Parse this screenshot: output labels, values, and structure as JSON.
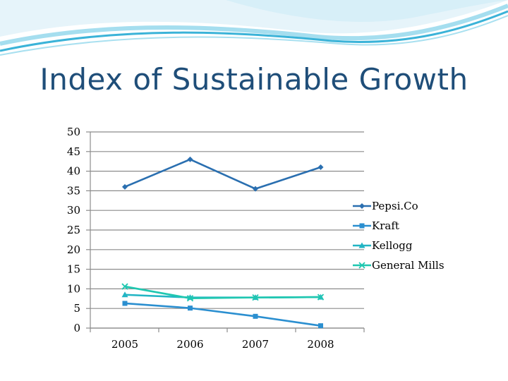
{
  "slide": {
    "title": "Index of Sustainable Growth"
  },
  "chart_data": {
    "type": "line",
    "title": "",
    "xlabel": "",
    "ylabel": "",
    "categories": [
      "2005",
      "2006",
      "2007",
      "2008"
    ],
    "ylim": [
      0,
      50
    ],
    "yticks": [
      0,
      5,
      10,
      15,
      20,
      25,
      30,
      35,
      40,
      45,
      50
    ],
    "grid": "horizontal",
    "legend_position": "right",
    "series": [
      {
        "name": "Pepsi.Co",
        "values": [
          36,
          43,
          35.5,
          41
        ],
        "color": "#2a6fb0",
        "marker": "diamond"
      },
      {
        "name": "Kraft",
        "values": [
          6.3,
          5.1,
          3,
          0.6
        ],
        "color": "#2b8fd0",
        "marker": "square"
      },
      {
        "name": "Kellogg",
        "values": [
          8.5,
          7.8,
          7.8,
          7.9
        ],
        "color": "#22b5c4",
        "marker": "triangle"
      },
      {
        "name": "General Mills",
        "values": [
          10.6,
          7.6,
          7.8,
          7.9
        ],
        "color": "#1fc7b0",
        "marker": "x"
      }
    ]
  }
}
